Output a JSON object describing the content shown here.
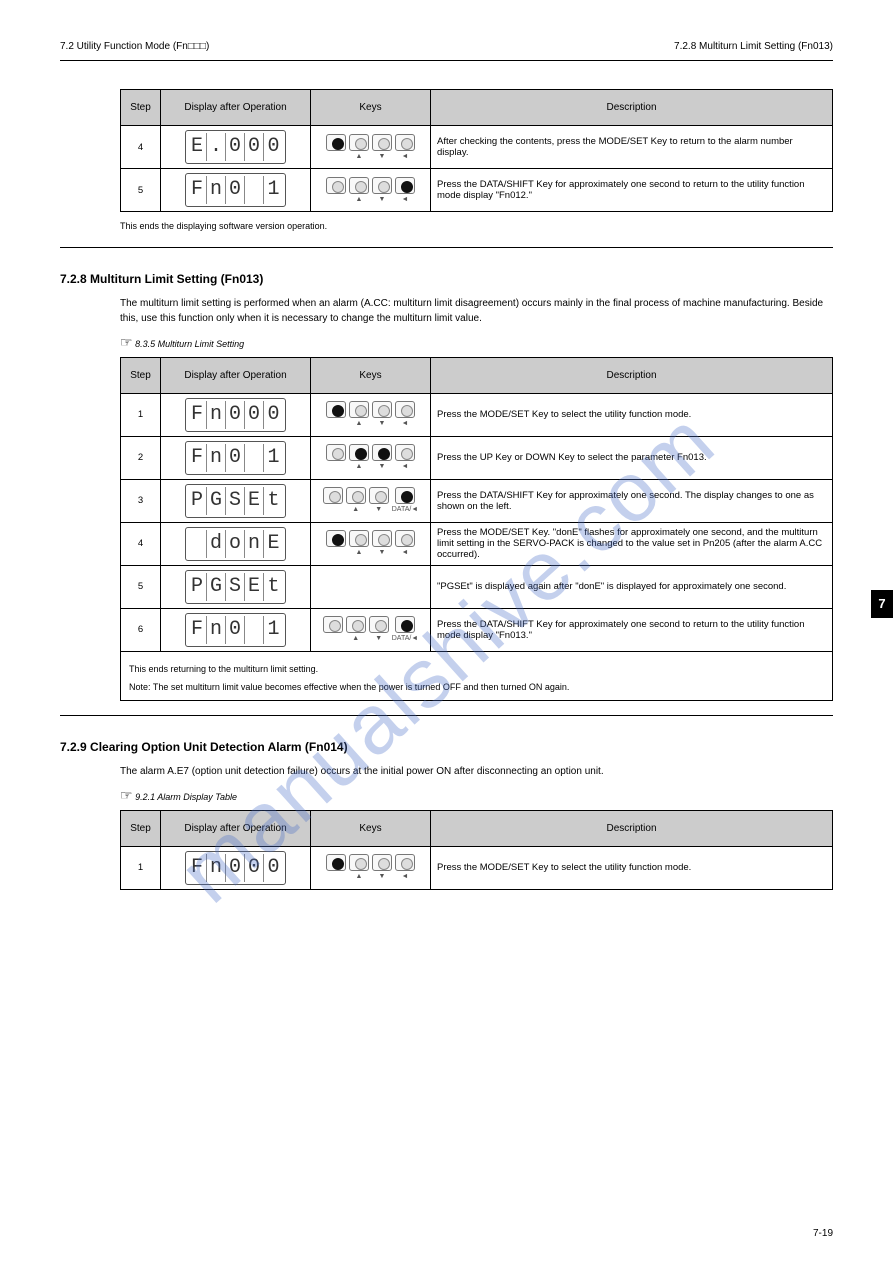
{
  "header": {
    "left": "7.2 Utility Function Mode (Fn□□□)",
    "right": "7.2.8 Multiturn Limit Setting (Fn013)"
  },
  "watermark": "manualshive.com",
  "table1": {
    "headers": [
      "Step",
      "Display after Operation",
      "Keys",
      "Description"
    ],
    "rows": [
      {
        "step": "4",
        "lcd": "E.000 1",
        "keys": [
          1,
          0,
          0,
          0
        ],
        "labels": [
          "",
          "▲",
          "▼",
          "◄"
        ],
        "desc": "After checking the contents, press the MODE/SET Key to return to the alarm number display."
      },
      {
        "step": "5",
        "lcd": "Fn0 12",
        "keys": [
          0,
          0,
          0,
          1
        ],
        "labels": [
          "",
          "▲",
          "▼",
          "◄"
        ],
        "desc": "Press the DATA/SHIFT Key for approximately one second to return to the utility function mode display \"Fn012.\""
      }
    ],
    "after": "This ends the displaying software version operation."
  },
  "section2": {
    "title": "7.2.8  Multiturn Limit Setting (Fn013)",
    "desc": "The multiturn limit setting is performed when an alarm (A.CC: multiturn limit disagreement) occurs mainly in the final process of machine manufacturing. Beside this, use this function only when it is necessary to change the multiturn limit value.",
    "ref": "8.3.5 Multiturn Limit Setting"
  },
  "table2": {
    "headers": [
      "Step",
      "Display after Operation",
      "Keys",
      "Description"
    ],
    "rows": [
      {
        "step": "1",
        "lcd": "Fn000",
        "keys": [
          1,
          0,
          0,
          0
        ],
        "labels": [
          "",
          "▲",
          "▼",
          "◄"
        ],
        "desc": "Press the MODE/SET Key to select the utility function mode."
      },
      {
        "step": "2",
        "lcd": "Fn0 13",
        "keys": [
          0,
          1,
          1,
          0
        ],
        "labels": [
          "",
          "▲",
          "▼",
          "◄"
        ],
        "desc": "Press the UP Key or DOWN Key to select the parameter Fn013."
      },
      {
        "step": "3",
        "lcd": "PGSEt",
        "keys": [
          0,
          0,
          0,
          1
        ],
        "labels": [
          "",
          "▲",
          "▼",
          "DATA/◄"
        ],
        "desc": "Press the DATA/SHIFT Key for approximately one second. The display changes to one as shown on the left."
      },
      {
        "step": "4",
        "lcd": " donE",
        "keys": [
          1,
          0,
          0,
          0
        ],
        "labels": [
          "",
          "▲",
          "▼",
          "◄"
        ],
        "desc": "Press the MODE/SET Key. \"donE\" flashes for approximately one second, and the multiturn limit setting in the SERVO-PACK is changed to the value set in Pn205 (after the alarm A.CC occurred)."
      },
      {
        "step": "5",
        "lcd": "PGSEt",
        "keys": null,
        "labels": [],
        "desc": "\"PGSEt\" is displayed again after \"donE\" is displayed for approximately one second."
      },
      {
        "step": "6",
        "lcd": "Fn0 13",
        "keys": [
          0,
          0,
          0,
          1
        ],
        "labels": [
          "",
          "▲",
          "▼",
          "DATA/◄"
        ],
        "desc": "Press the DATA/SHIFT Key for approximately one second to return to the utility function mode display \"Fn013.\""
      }
    ],
    "after1": "This ends returning to the multiturn limit setting.",
    "after2": "Note: The set multiturn limit value becomes effective when the power is turned OFF and then turned ON again."
  },
  "section3": {
    "title": "7.2.9  Clearing Option Unit Detection Alarm (Fn014)",
    "desc": "The alarm A.E7 (option unit detection failure) occurs at the initial power ON after disconnecting an option unit.",
    "ref": "9.2.1 Alarm Display Table"
  },
  "table3": {
    "headers": [
      "Step",
      "Display after Operation",
      "Keys",
      "Description"
    ],
    "rows": [
      {
        "step": "1",
        "lcd": "Fn000",
        "keys": [
          1,
          0,
          0,
          0
        ],
        "labels": [
          "",
          "▲",
          "▼",
          "◄"
        ],
        "desc": "Press the MODE/SET Key to select the utility function mode."
      }
    ]
  },
  "page_number": "7-19",
  "side_tab": "7"
}
